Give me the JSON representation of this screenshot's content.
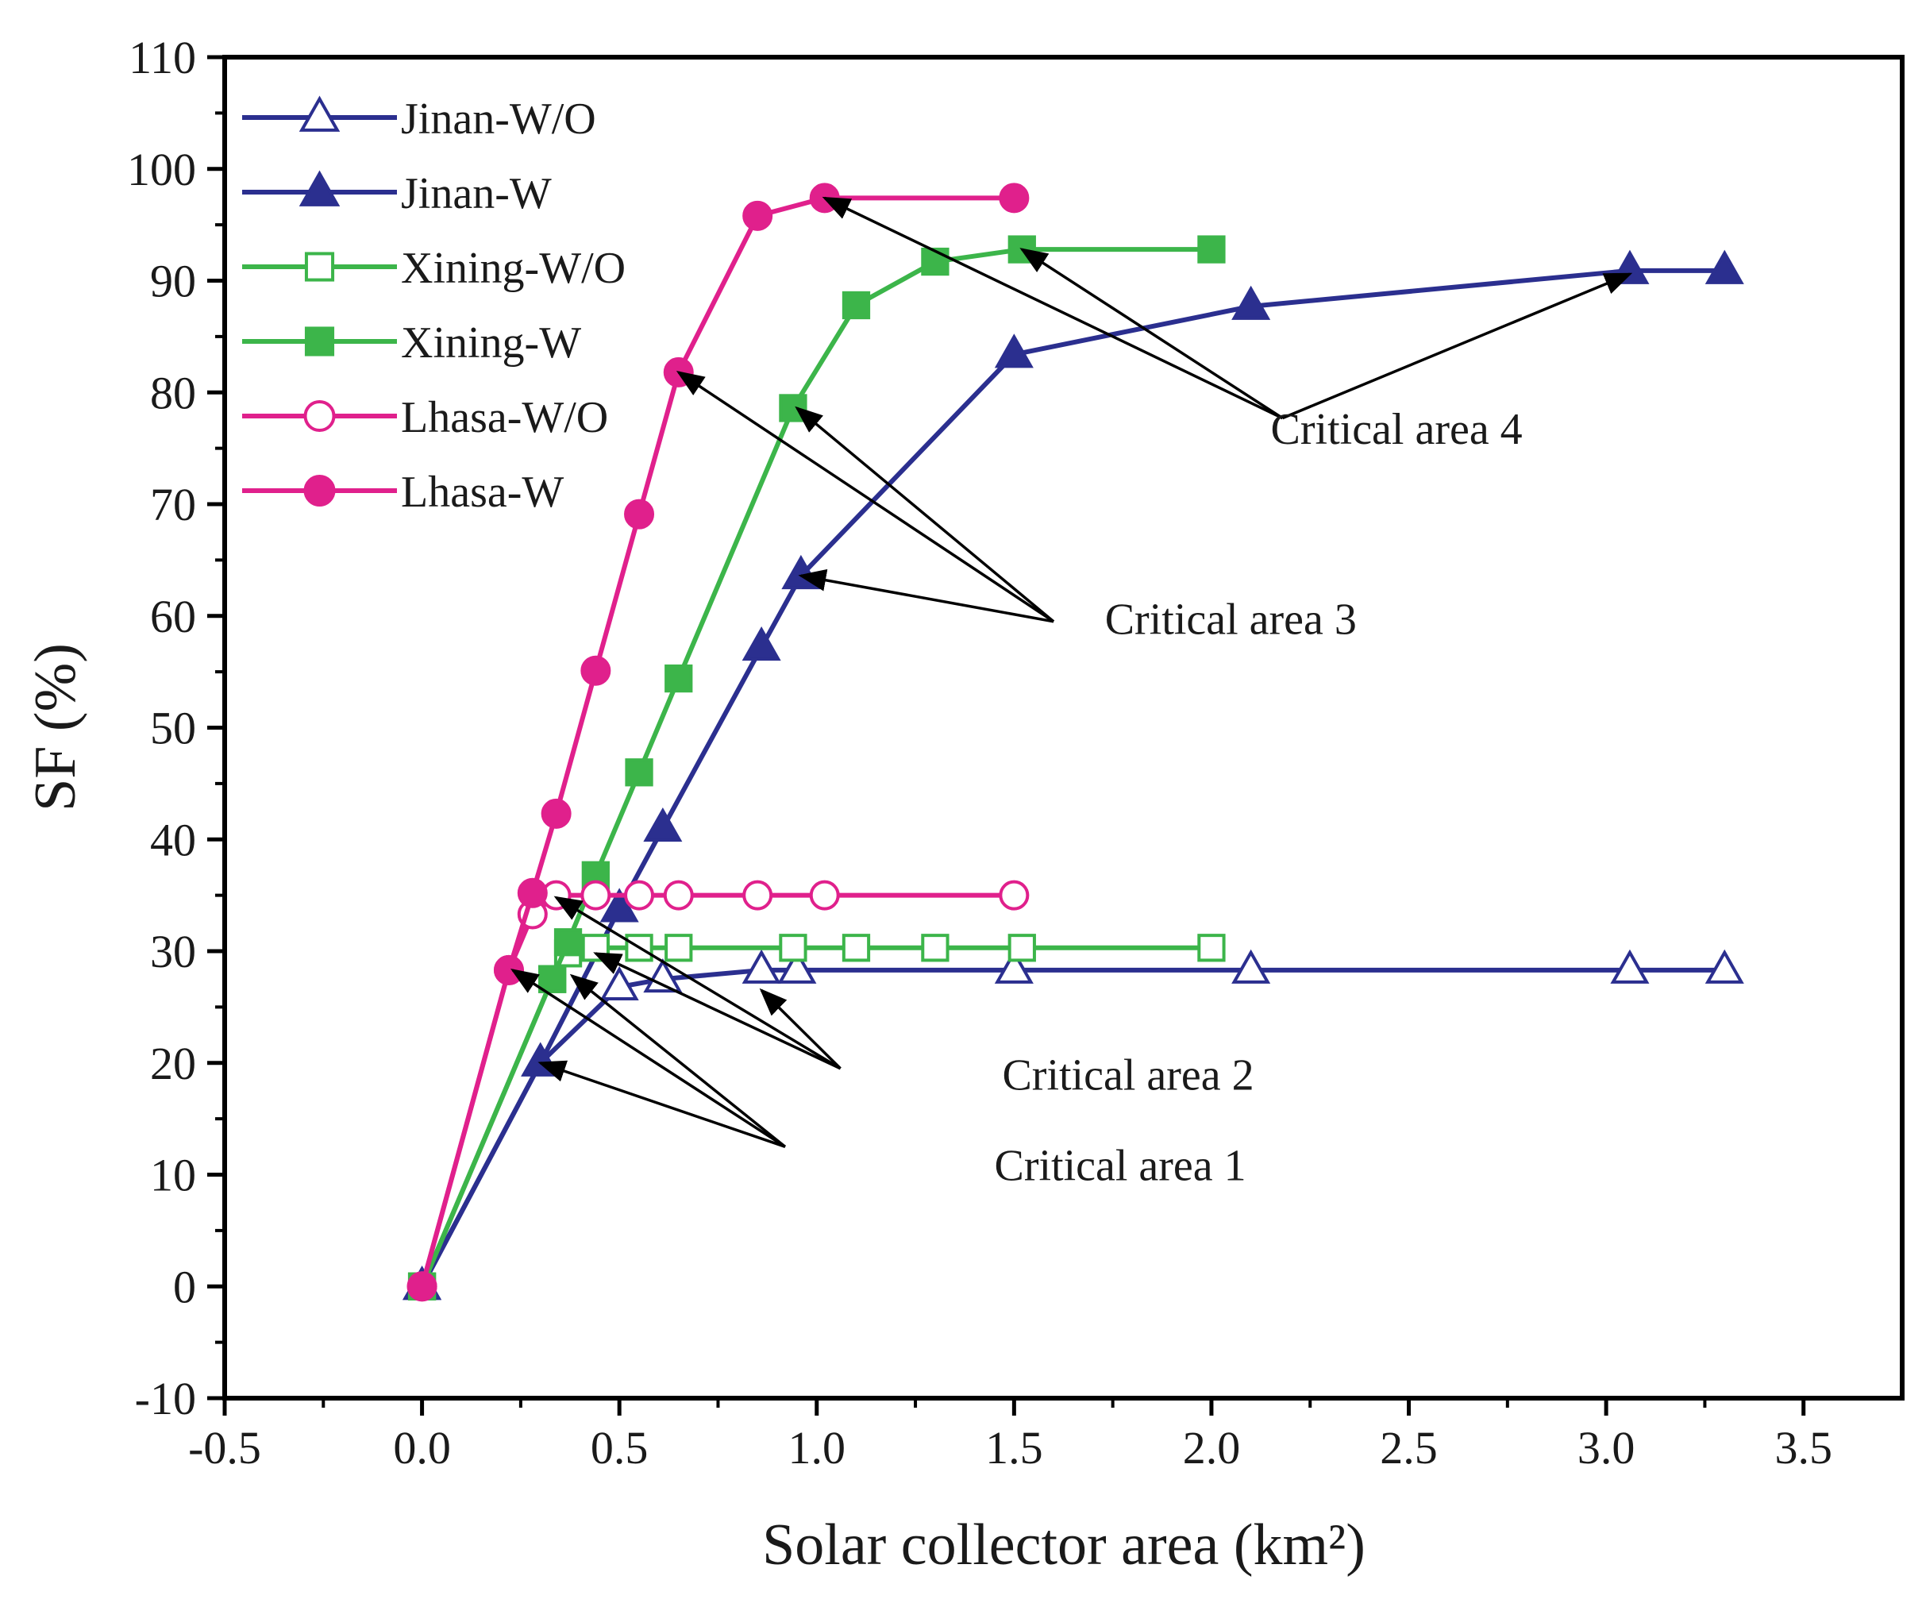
{
  "chart_data": {
    "type": "line",
    "title": "",
    "xlabel": "Solar collector area (km²)",
    "ylabel": "SF (%)",
    "xlim": [
      -0.5,
      3.75
    ],
    "ylim": [
      -10,
      110
    ],
    "xticks": [
      -0.5,
      0.0,
      0.5,
      1.0,
      1.5,
      2.0,
      2.5,
      3.0,
      3.5
    ],
    "xtick_labels": [
      "-0.5",
      "0.0",
      "0.5",
      "1.0",
      "1.5",
      "2.0",
      "2.5",
      "3.0",
      "3.5"
    ],
    "yticks": [
      -10,
      0,
      10,
      20,
      30,
      40,
      50,
      60,
      70,
      80,
      90,
      100,
      110
    ],
    "ytick_labels": [
      "-10",
      "0",
      "10",
      "20",
      "30",
      "40",
      "50",
      "60",
      "70",
      "80",
      "90",
      "100",
      "110"
    ],
    "grid": false,
    "legend_position": "top-left",
    "series": [
      {
        "name": "Jinan-W/O",
        "color": "#2b2f8f",
        "marker": "triangle",
        "filled": false,
        "x": [
          0.0,
          0.3,
          0.5,
          0.61,
          0.86,
          0.95,
          1.5,
          2.1,
          3.06,
          3.3
        ],
        "y": [
          0.0,
          20.0,
          26.8,
          27.5,
          28.3,
          28.3,
          28.3,
          28.3,
          28.3,
          28.3
        ]
      },
      {
        "name": "Jinan-W",
        "color": "#2b2f8f",
        "marker": "triangle",
        "filled": true,
        "x": [
          0.0,
          0.3,
          0.5,
          0.61,
          0.86,
          0.96,
          1.5,
          2.1,
          3.06,
          3.3
        ],
        "y": [
          0.0,
          20.0,
          33.8,
          41.0,
          57.2,
          63.6,
          83.4,
          87.7,
          90.9,
          90.9
        ]
      },
      {
        "name": "Xining-W/O",
        "color": "#3cb54a",
        "marker": "square",
        "filled": false,
        "x": [
          0.0,
          0.33,
          0.37,
          0.44,
          0.55,
          0.65,
          0.94,
          1.1,
          1.3,
          1.52,
          2.0
        ],
        "y": [
          0.0,
          27.5,
          29.8,
          30.3,
          30.3,
          30.3,
          30.3,
          30.3,
          30.3,
          30.3,
          30.3
        ]
      },
      {
        "name": "Xining-W",
        "color": "#3cb54a",
        "marker": "square",
        "filled": true,
        "x": [
          0.0,
          0.33,
          0.37,
          0.44,
          0.55,
          0.65,
          0.94,
          1.1,
          1.3,
          1.52,
          2.0
        ],
        "y": [
          0.0,
          27.5,
          30.8,
          36.8,
          46.0,
          54.4,
          78.6,
          87.8,
          91.7,
          92.8,
          92.8
        ]
      },
      {
        "name": "Lhasa-W/O",
        "color": "#e0208c",
        "marker": "circle",
        "filled": false,
        "x": [
          0.0,
          0.22,
          0.28,
          0.34,
          0.44,
          0.55,
          0.65,
          0.85,
          1.02,
          1.5
        ],
        "y": [
          0.0,
          28.3,
          33.3,
          35.0,
          35.0,
          35.0,
          35.0,
          35.0,
          35.0,
          35.0
        ]
      },
      {
        "name": "Lhasa-W",
        "color": "#e0208c",
        "marker": "circle",
        "filled": true,
        "x": [
          0.0,
          0.22,
          0.28,
          0.34,
          0.44,
          0.55,
          0.65,
          0.85,
          1.02,
          1.5
        ],
        "y": [
          0.0,
          28.3,
          35.2,
          42.3,
          55.1,
          69.1,
          81.8,
          95.8,
          97.4,
          97.4
        ]
      }
    ],
    "annotations": [
      {
        "text": "Critical area 1",
        "text_at": [
          1.45,
          9.5
        ],
        "arrows": [
          [
            0.92,
            12.5,
            0.23,
            28.3
          ],
          [
            0.92,
            12.5,
            0.38,
            27.8
          ],
          [
            0.92,
            12.5,
            0.3,
            20.0
          ]
        ]
      },
      {
        "text": "Critical area 2",
        "text_at": [
          1.47,
          17.6
        ],
        "arrows": [
          [
            1.06,
            19.5,
            0.34,
            34.8
          ],
          [
            1.06,
            19.5,
            0.44,
            29.8
          ],
          [
            1.06,
            19.5,
            0.86,
            26.5
          ]
        ]
      },
      {
        "text": "Critical area 3",
        "text_at": [
          1.73,
          58.4
        ],
        "arrows": [
          [
            1.6,
            59.5,
            0.65,
            81.8
          ],
          [
            1.6,
            59.5,
            0.95,
            78.6
          ],
          [
            1.6,
            59.5,
            0.96,
            63.6
          ]
        ]
      },
      {
        "text": "Critical area 4",
        "text_at": [
          2.15,
          75.4
        ],
        "arrows": [
          [
            2.18,
            77.7,
            1.02,
            97.4
          ],
          [
            2.18,
            77.7,
            1.52,
            92.8
          ],
          [
            2.18,
            77.7,
            3.06,
            90.6
          ]
        ]
      }
    ]
  }
}
